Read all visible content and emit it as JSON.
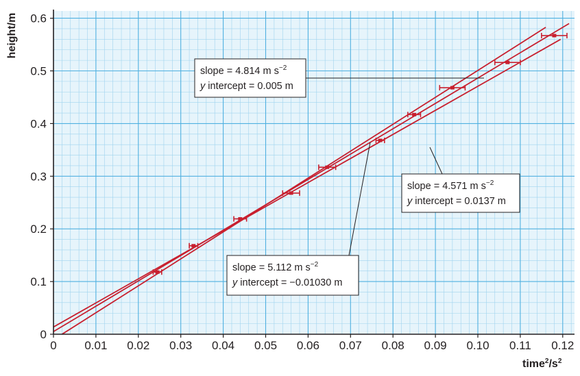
{
  "chart_data": {
    "type": "scatter",
    "title": "",
    "xlabel": "time²/s²",
    "xlabel_base": "time",
    "xlabel_sup": "2",
    "xlabel_sep": "/s",
    "xlabel_sup2": "2",
    "ylabel": "height/m",
    "xlim": [
      0,
      0.122
    ],
    "ylim": [
      0,
      0.61
    ],
    "x_ticks": [
      "0",
      "0.01",
      "0.02",
      "0.03",
      "0.04",
      "0.05",
      "0.06",
      "0.07",
      "0.08",
      "0.09",
      "0.10",
      "0.11",
      "0.12"
    ],
    "y_ticks": [
      "0",
      "0.1",
      "0.2",
      "0.3",
      "0.4",
      "0.5",
      "0.6"
    ],
    "grid": true,
    "colors": {
      "background": "#e6f4fb",
      "grid_minor": "#9fd3ee",
      "grid_major": "#4fb0e0",
      "data": "#c8202f",
      "axis": "#231f20"
    },
    "points": [
      {
        "x": 0.0245,
        "y": 0.118,
        "xerr": 0.001
      },
      {
        "x": 0.033,
        "y": 0.168,
        "xerr": 0.001
      },
      {
        "x": 0.044,
        "y": 0.219,
        "xerr": 0.0015
      },
      {
        "x": 0.056,
        "y": 0.268,
        "xerr": 0.002
      },
      {
        "x": 0.0645,
        "y": 0.317,
        "xerr": 0.002
      },
      {
        "x": 0.077,
        "y": 0.368,
        "xerr": 0.001
      },
      {
        "x": 0.085,
        "y": 0.417,
        "xerr": 0.0015
      },
      {
        "x": 0.094,
        "y": 0.468,
        "xerr": 0.003
      },
      {
        "x": 0.107,
        "y": 0.516,
        "xerr": 0.003
      },
      {
        "x": 0.118,
        "y": 0.567,
        "xerr": 0.003
      }
    ],
    "lines": [
      {
        "slope": 4.814,
        "intercept": 0.005,
        "x_range": [
          0,
          0.1215
        ]
      },
      {
        "slope": 4.571,
        "intercept": 0.0137,
        "x_range": [
          0,
          0.1195
        ]
      },
      {
        "slope": 5.112,
        "intercept": -0.0103,
        "x_range": [
          0.002,
          0.116
        ]
      }
    ],
    "annotations": [
      {
        "slope_prefix": "slope = 4.814 m s",
        "slope_sup": "−2",
        "intercept_label": "y",
        "intercept_rest": " intercept = 0.005 m"
      },
      {
        "slope_prefix": "slope = 4.571 m s",
        "slope_sup": "−2",
        "intercept_label": "y",
        "intercept_rest": " intercept = 0.0137 m"
      },
      {
        "slope_prefix": "slope = 5.112 m s",
        "slope_sup": "−2",
        "intercept_label": "y",
        "intercept_rest": " intercept = −0.01030 m"
      }
    ]
  }
}
